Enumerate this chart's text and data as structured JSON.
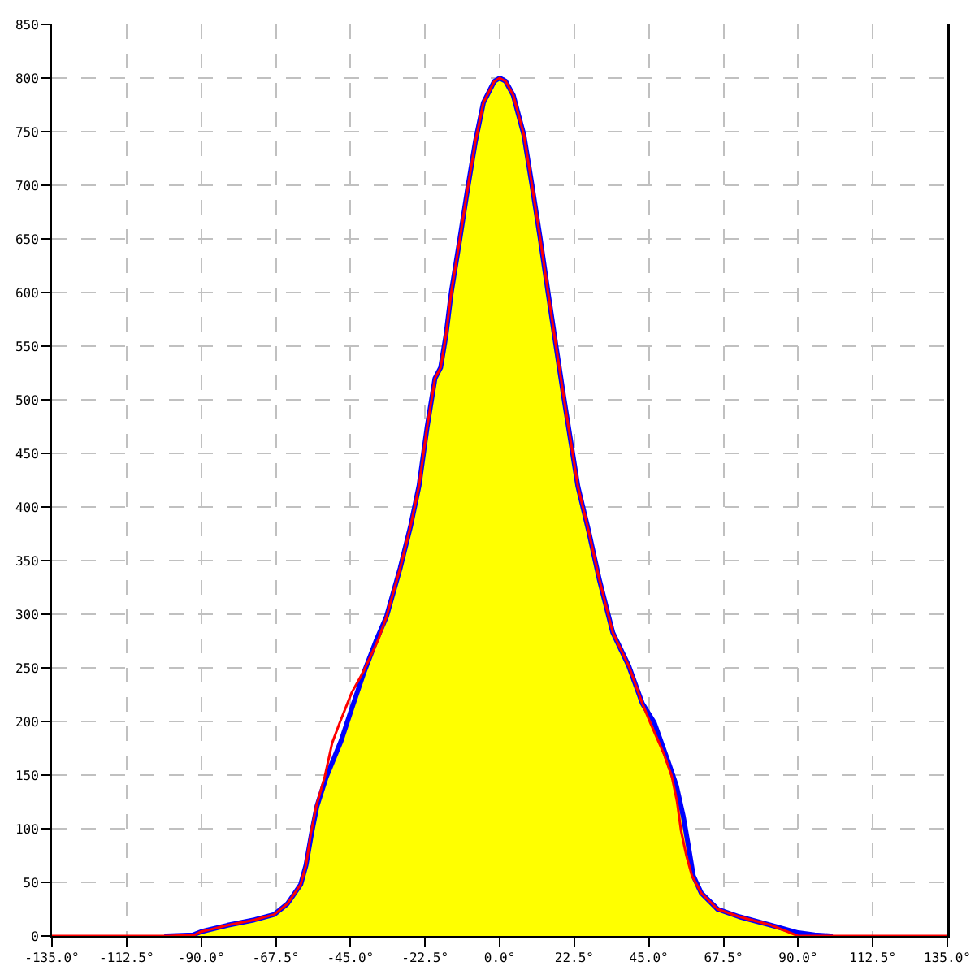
{
  "chart_data": {
    "type": "area",
    "series": [
      {
        "color": "#ffff00",
        "x": [
          -92.5,
          -90,
          -82,
          -74,
          -68,
          -64,
          -60,
          -58.4,
          -56.7,
          -55.1,
          -52.3,
          -47.8,
          -44.6,
          -41,
          -37.3,
          -34.1,
          -30,
          -26.8,
          -24.3,
          -21.9,
          -19.5,
          -17.8,
          -16.2,
          -14.6,
          -12.2,
          -9.7,
          -7.3,
          -4.9,
          -1.6,
          0,
          1.8,
          4.1,
          7.3,
          9.7,
          12.2,
          14.6,
          17,
          19.5,
          23.6,
          26.8,
          30,
          34.1,
          38.9,
          43,
          46.6,
          51,
          53.3,
          55.4,
          56.8,
          58.4,
          60.8,
          65.7,
          72.2,
          81.9,
          90,
          95
        ],
        "values": [
          1,
          4,
          10,
          15,
          20,
          30,
          48,
          66,
          96,
          121,
          148,
          182,
          212,
          245,
          275,
          298,
          343,
          383,
          420,
          474,
          520,
          530,
          560,
          600,
          646,
          696,
          741,
          777,
          797,
          800,
          797,
          784,
          747,
          701,
          651,
          600,
          550,
          499,
          419,
          378,
          333,
          283,
          252,
          217,
          199,
          161,
          140,
          111,
          86,
          56,
          40,
          25,
          18,
          10,
          3,
          1
        ]
      },
      {
        "type": "line",
        "color": "#0000ff",
        "x": [
          -100.5,
          -92.5,
          -90,
          -82,
          -74,
          -68,
          -64,
          -60,
          -58.4,
          -56.7,
          -55.1,
          -52.3,
          -47.8,
          -44.6,
          -41,
          -37.3,
          -34.1,
          -30,
          -26.8,
          -24.3,
          -21.9,
          -19.5,
          -17.8,
          -16.2,
          -14.6,
          -12.2,
          -9.7,
          -7.3,
          -4.9,
          -1.6,
          0,
          1.8,
          4.1,
          7.3,
          9.7,
          12.2,
          14.6,
          17,
          19.5,
          23.6,
          26.8,
          30,
          34.1,
          38.9,
          43,
          46.6,
          51,
          53.3,
          55.4,
          56.8,
          58.4,
          60.8,
          65.7,
          72.2,
          81.9,
          90,
          95,
          99.8
        ],
        "values": [
          0,
          1,
          4,
          10,
          15,
          20,
          30,
          48,
          66,
          96,
          121,
          148,
          182,
          212,
          245,
          275,
          298,
          343,
          383,
          420,
          474,
          520,
          530,
          560,
          600,
          646,
          696,
          741,
          777,
          797,
          800,
          797,
          784,
          747,
          701,
          651,
          600,
          550,
          499,
          419,
          378,
          333,
          283,
          252,
          217,
          199,
          161,
          140,
          111,
          86,
          56,
          40,
          25,
          18,
          10,
          3,
          1,
          0
        ]
      },
      {
        "type": "line",
        "color": "#ff0000",
        "x": [
          -135,
          -100,
          -92,
          -90,
          -82,
          -74,
          -68,
          -64,
          -60,
          -58.4,
          -56.9,
          -55.3,
          -52.7,
          -50.5,
          -48.2,
          -44.6,
          -41,
          -36.5,
          -34.1,
          -30,
          -26.8,
          -24.3,
          -21.9,
          -19.5,
          -17.8,
          -16.2,
          -14.6,
          -12.2,
          -9.7,
          -7.3,
          -4.9,
          -1.6,
          0,
          1.8,
          4.1,
          7.3,
          9.7,
          12.2,
          14.6,
          17,
          19.5,
          23.6,
          26.8,
          30,
          34.1,
          38.9,
          43,
          45.4,
          49.5,
          51.9,
          53.5,
          54.7,
          56.3,
          58,
          60.8,
          65.7,
          72.2,
          81.9,
          90,
          135
        ],
        "values": [
          0,
          0,
          1,
          4,
          10,
          15,
          20,
          30,
          48,
          66,
          96,
          121,
          149,
          180,
          199,
          227,
          247,
          277,
          298,
          343,
          383,
          420,
          474,
          520,
          530,
          560,
          600,
          646,
          696,
          741,
          777,
          797,
          800,
          797,
          784,
          747,
          701,
          651,
          600,
          550,
          499,
          419,
          378,
          333,
          283,
          252,
          217,
          199,
          170,
          149,
          125,
          98,
          75,
          56,
          40,
          25,
          18,
          10,
          0,
          0
        ]
      }
    ],
    "xlim": [
      -135,
      135
    ],
    "xticks": [
      {
        "value": -135,
        "label": "-135.0°"
      },
      {
        "value": -112.5,
        "label": "-112.5°"
      },
      {
        "value": -90,
        "label": "-90.0°"
      },
      {
        "value": -67.5,
        "label": "-67.5°"
      },
      {
        "value": -45,
        "label": "-45.0°"
      },
      {
        "value": -22.5,
        "label": "-22.5°"
      },
      {
        "value": 0,
        "label": "0.0°"
      },
      {
        "value": 22.5,
        "label": "22.5°"
      },
      {
        "value": 45,
        "label": "45.0°"
      },
      {
        "value": 67.5,
        "label": "67.5°"
      },
      {
        "value": 90,
        "label": "90.0°"
      },
      {
        "value": 112.5,
        "label": "112.5°"
      },
      {
        "value": 135,
        "label": "135.0°"
      }
    ],
    "ylim": [
      0,
      850
    ],
    "yticks": [
      0,
      50,
      100,
      150,
      200,
      250,
      300,
      350,
      400,
      450,
      500,
      550,
      600,
      650,
      700,
      750,
      800,
      850
    ],
    "grid": true
  }
}
